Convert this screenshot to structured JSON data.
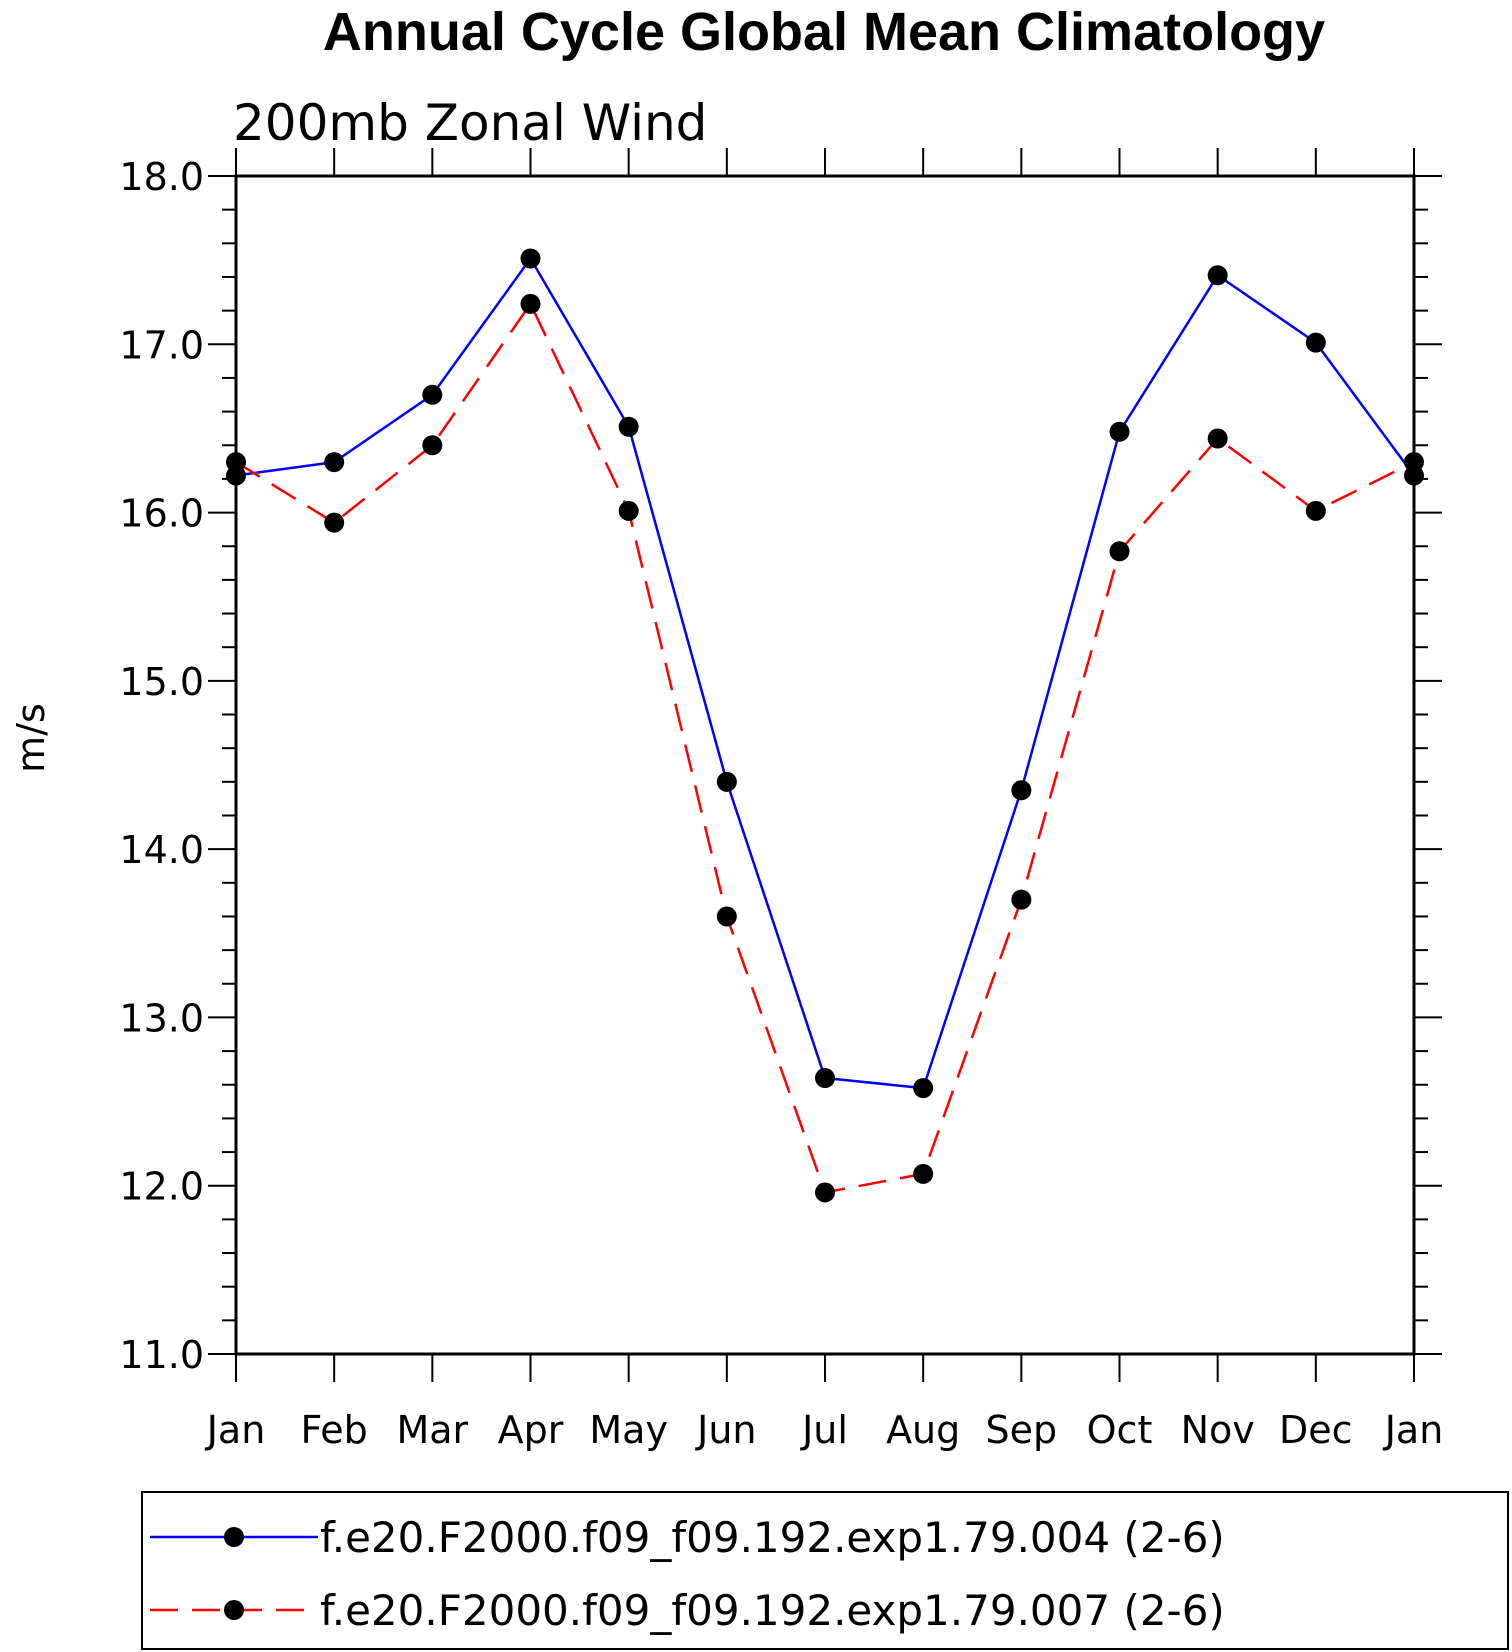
{
  "chart_data": {
    "type": "line",
    "title": "Annual Cycle Global Mean Climatology",
    "subtitle": "200mb Zonal Wind",
    "xlabel": "",
    "ylabel": "m/s",
    "categories": [
      "Jan",
      "Feb",
      "Mar",
      "Apr",
      "May",
      "Jun",
      "Jul",
      "Aug",
      "Sep",
      "Oct",
      "Nov",
      "Dec",
      "Jan"
    ],
    "ylim": [
      11.0,
      18.0
    ],
    "yticks": [
      11.0,
      12.0,
      13.0,
      14.0,
      15.0,
      16.0,
      17.0,
      18.0
    ],
    "ytick_labels": [
      "11.0",
      "12.0",
      "13.0",
      "14.0",
      "15.0",
      "16.0",
      "17.0",
      "18.0"
    ],
    "y_minor_step": 0.2,
    "grid": false,
    "legend_position": "bottom",
    "series": [
      {
        "name": "f.e20.F2000.f09_f09.192.exp1.79.004 (2-6)",
        "color": "#0000ff",
        "dash": "solid",
        "marker": "filled-circle",
        "values": [
          16.22,
          16.3,
          16.7,
          17.51,
          16.51,
          14.4,
          12.64,
          12.58,
          14.35,
          16.48,
          17.41,
          17.01,
          16.22
        ]
      },
      {
        "name": "f.e20.F2000.f09_f09.192.exp1.79.007 (2-6)",
        "color": "#ff0000",
        "dash": "dashed",
        "marker": "filled-circle",
        "values": [
          16.3,
          15.94,
          16.4,
          17.24,
          16.01,
          13.6,
          11.96,
          12.07,
          13.7,
          15.77,
          16.44,
          16.01,
          16.3
        ]
      }
    ]
  }
}
